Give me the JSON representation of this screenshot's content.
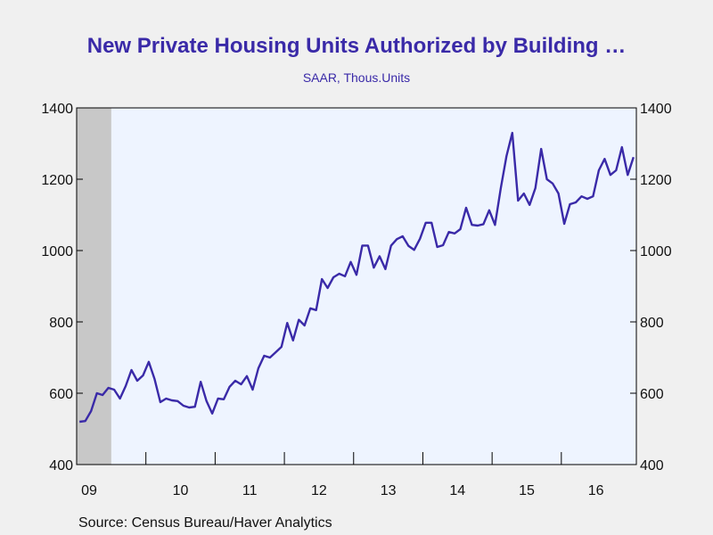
{
  "chart_data": {
    "type": "line",
    "title": "New Private Housing Units Authorized by Building …",
    "subtitle": "SAAR, Thous.Units",
    "source": "Source:  Census Bureau/Haver Analytics",
    "ylim": [
      400,
      1400
    ],
    "y_ticks": [
      400,
      600,
      800,
      1000,
      1200,
      1400
    ],
    "y_tick_labels": [
      "400",
      "600",
      "800",
      "1000",
      "1200",
      "1400"
    ],
    "x_tick_labels": [
      "09",
      "10",
      "11",
      "12",
      "13",
      "14",
      "15",
      "16"
    ],
    "recession_shading": {
      "start": "2009-01",
      "end": "2009-06"
    },
    "series": [
      {
        "color": "#3a2aa8",
        "start": "2009-01",
        "frequency": "monthly",
        "values": [
          520,
          522,
          550,
          600,
          595,
          615,
          610,
          585,
          620,
          665,
          635,
          650,
          688,
          640,
          575,
          585,
          580,
          578,
          565,
          560,
          562,
          632,
          578,
          543,
          585,
          583,
          618,
          635,
          625,
          648,
          610,
          670,
          705,
          700,
          715,
          730,
          797,
          748,
          806,
          790,
          838,
          833,
          920,
          895,
          925,
          935,
          928,
          968,
          932,
          1014,
          1014,
          952,
          984,
          948,
          1014,
          1032,
          1040,
          1013,
          1002,
          1033,
          1078,
          1078,
          1010,
          1015,
          1052,
          1048,
          1060,
          1120,
          1072,
          1070,
          1074,
          1113,
          1072,
          1175,
          1265,
          1330,
          1140,
          1160,
          1128,
          1175,
          1285,
          1200,
          1188,
          1160,
          1075,
          1130,
          1135,
          1152,
          1145,
          1152,
          1225,
          1257,
          1212,
          1225,
          1290,
          1212,
          1262
        ]
      }
    ]
  }
}
